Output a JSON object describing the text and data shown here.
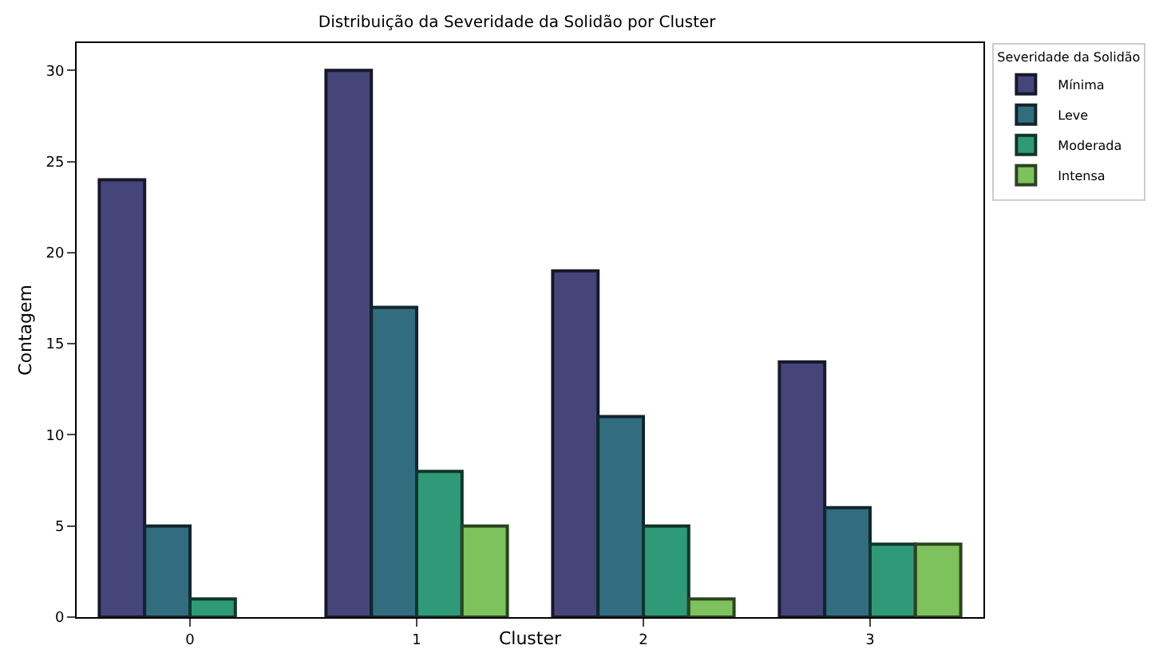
{
  "chart_data": {
    "type": "bar",
    "title": "Distribuição da Severidade da Solidão por Cluster",
    "xlabel": "Cluster",
    "ylabel": "Contagem",
    "legend_title": "Severidade da Solidão",
    "categories": [
      "0",
      "1",
      "2",
      "3"
    ],
    "series": [
      {
        "name": "Mínima",
        "color": "#46457a",
        "values": [
          24,
          30,
          19,
          14
        ]
      },
      {
        "name": "Leve",
        "color": "#316d7e",
        "values": [
          5,
          17,
          11,
          6
        ]
      },
      {
        "name": "Moderada",
        "color": "#2f9a78",
        "values": [
          1,
          8,
          5,
          4
        ]
      },
      {
        "name": "Intensa",
        "color": "#7dc25d",
        "values": [
          null,
          5,
          1,
          4
        ]
      }
    ],
    "ylim": [
      0,
      31.5
    ],
    "yticks": [
      0,
      5,
      10,
      15,
      20,
      25,
      30
    ],
    "grid": false,
    "legend": "top right"
  }
}
